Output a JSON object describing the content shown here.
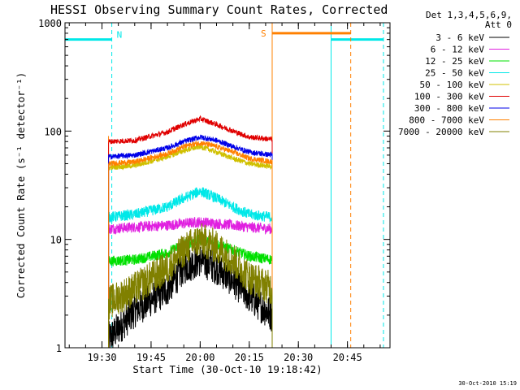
{
  "chart_data": {
    "type": "line",
    "title": "HESSI Observing Summary Count Rates, Corrected",
    "xlabel": "Start Time (30-Oct-10 19:18:42)",
    "ylabel": "Corrected Count Rate (s⁻¹ detector⁻¹)",
    "yscale": "log",
    "ylim": [
      1,
      1000
    ],
    "xlim": [
      "19:18:42",
      "20:58:00"
    ],
    "x_tick_labels": [
      "19:30",
      "19:45",
      "20:00",
      "20:15",
      "20:30",
      "20:45"
    ],
    "y_tick_labels": [
      "1",
      "10",
      "100",
      "1000"
    ],
    "legend_title_lines": [
      "Det 1,3,4,5,6,9,",
      "Att 0"
    ],
    "data_window": [
      "19:32",
      "20:22"
    ],
    "series": [
      {
        "name": "3 - 6 keV",
        "color": "#000000",
        "x": [
          "19:32",
          "19:40",
          "19:50",
          "19:55",
          "20:00",
          "20:05",
          "20:10",
          "20:15",
          "20:22"
        ],
        "y": [
          1.2,
          2.2,
          3.5,
          5.5,
          6.5,
          5.5,
          4.2,
          3.0,
          2.0
        ]
      },
      {
        "name": "6 - 12 keV",
        "color": "#e020e0",
        "x": [
          "19:32",
          "19:40",
          "19:50",
          "19:55",
          "20:00",
          "20:05",
          "20:10",
          "20:15",
          "20:22"
        ],
        "y": [
          12.5,
          13,
          13.5,
          14,
          14.5,
          14,
          13.5,
          13,
          12.5
        ]
      },
      {
        "name": "12 - 25 keV",
        "color": "#00e000",
        "x": [
          "19:32",
          "19:40",
          "19:50",
          "19:55",
          "20:00",
          "20:05",
          "20:10",
          "20:15",
          "20:22"
        ],
        "y": [
          6.3,
          6.5,
          7.5,
          9.0,
          10.0,
          9.0,
          8.0,
          7.0,
          6.5
        ]
      },
      {
        "name": "25 - 50 keV",
        "color": "#00e8e8",
        "x": [
          "19:32",
          "19:40",
          "19:50",
          "19:55",
          "20:00",
          "20:05",
          "20:10",
          "20:15",
          "20:22"
        ],
        "y": [
          16,
          17,
          20,
          24,
          28,
          24,
          20,
          17,
          16
        ]
      },
      {
        "name": "50 - 100 keV",
        "color": "#d0c000",
        "x": [
          "19:32",
          "19:40",
          "19:50",
          "19:55",
          "20:00",
          "20:05",
          "20:10",
          "20:15",
          "20:22"
        ],
        "y": [
          46,
          48,
          58,
          66,
          72,
          64,
          56,
          50,
          47
        ]
      },
      {
        "name": "100 - 300 keV",
        "color": "#e00000",
        "x": [
          "19:32",
          "19:40",
          "19:50",
          "19:55",
          "20:00",
          "20:05",
          "20:10",
          "20:15",
          "20:22"
        ],
        "y": [
          80,
          82,
          98,
          115,
          130,
          115,
          100,
          88,
          84
        ]
      },
      {
        "name": "300 - 800 keV",
        "color": "#0000e8",
        "x": [
          "19:32",
          "19:40",
          "19:50",
          "19:55",
          "20:00",
          "20:05",
          "20:10",
          "20:15",
          "20:22"
        ],
        "y": [
          58,
          60,
          70,
          80,
          88,
          82,
          72,
          64,
          60
        ]
      },
      {
        "name": "800 - 7000 keV",
        "color": "#ff8000",
        "x": [
          "19:32",
          "19:40",
          "19:50",
          "19:55",
          "20:00",
          "20:05",
          "20:10",
          "20:15",
          "20:22"
        ],
        "y": [
          50,
          52,
          62,
          72,
          78,
          72,
          64,
          56,
          52
        ]
      },
      {
        "name": "7000 - 20000 keV",
        "color": "#808000",
        "x": [
          "19:32",
          "19:40",
          "19:50",
          "19:55",
          "20:00",
          "20:05",
          "20:10",
          "20:15",
          "20:22"
        ],
        "y": [
          2.6,
          3.5,
          5.5,
          8.0,
          10.0,
          8.5,
          6.5,
          4.5,
          3.5
        ]
      }
    ],
    "night_markers": [
      {
        "label": "N",
        "color": "#00e8e8",
        "start": "19:18:42",
        "end": "19:33",
        "level": 700
      },
      {
        "label": "",
        "color": "#00e8e8",
        "start": "20:40",
        "end": "20:56",
        "level": 700
      }
    ],
    "saa_marker": {
      "label": "S",
      "color": "#ff8000",
      "start": "20:22",
      "end": "20:46",
      "level": 800
    },
    "grid": false,
    "legend_position": "right"
  },
  "timestamp": "30-Oct-2010 15:19"
}
